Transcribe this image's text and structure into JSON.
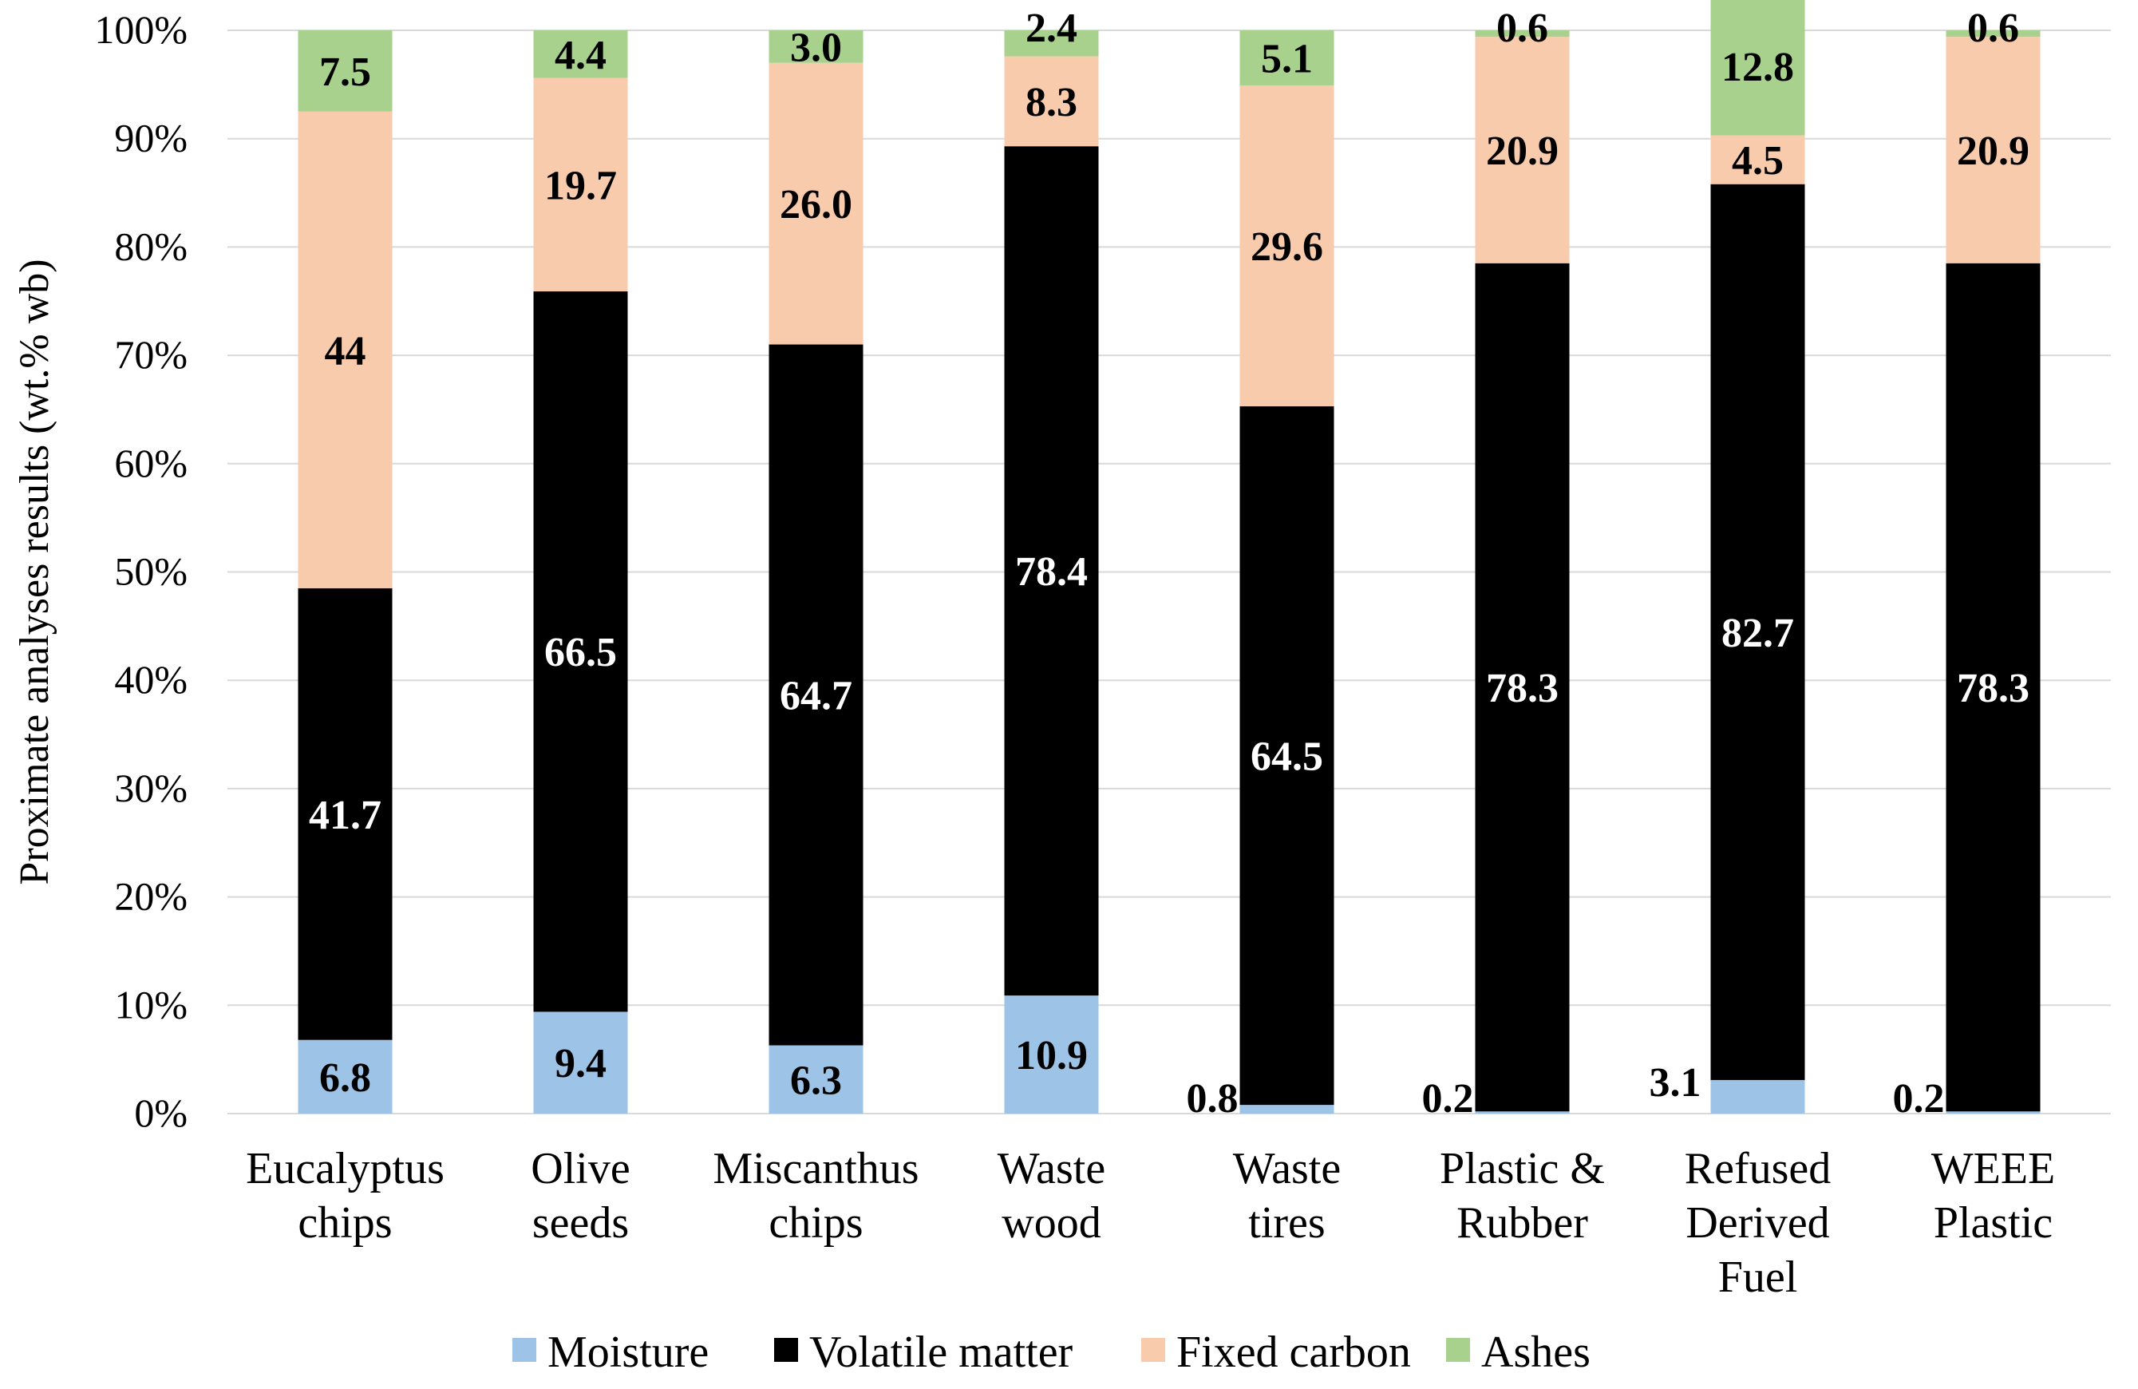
{
  "chart_data": {
    "type": "bar",
    "stacked": true,
    "title": "",
    "xlabel": "",
    "ylabel": "Proximate analyses results (wt.% wb)",
    "ylim": [
      0,
      100
    ],
    "y_tick_labels": [
      "0%",
      "10%",
      "20%",
      "30%",
      "40%",
      "50%",
      "60%",
      "70%",
      "80%",
      "90%",
      "100%"
    ],
    "grid": true,
    "legend_position": "bottom",
    "categories": [
      [
        "Eucalyptus",
        "chips"
      ],
      [
        "Olive",
        "seeds"
      ],
      [
        "Miscanthus",
        "chips"
      ],
      [
        "Waste",
        "wood"
      ],
      [
        "Waste",
        "tires"
      ],
      [
        "Plastic &",
        "Rubber"
      ],
      [
        "Refused",
        "Derived",
        "Fuel"
      ],
      [
        "WEEE",
        "Plastic"
      ]
    ],
    "series": [
      {
        "name": "Moisture",
        "color": "#9dc3e6",
        "label_color": "#000000",
        "values": [
          6.8,
          9.4,
          6.3,
          10.9,
          0.8,
          0.2,
          3.1,
          0.2
        ],
        "labels": [
          "6.8",
          "9.4",
          "6.3",
          "10.9",
          "0.8",
          "0.2",
          "3.1",
          "0.2"
        ]
      },
      {
        "name": "Volatile matter",
        "color": "#000000",
        "label_color": "#ffffff",
        "values": [
          41.7,
          66.5,
          64.7,
          78.4,
          64.5,
          78.3,
          82.7,
          78.3
        ],
        "labels": [
          "41.7",
          "66.5",
          "64.7",
          "78.4",
          "64.5",
          "78.3",
          "82.7",
          "78.3"
        ]
      },
      {
        "name": "Fixed carbon",
        "color": "#f8cbad",
        "label_color": "#000000",
        "values": [
          44,
          19.7,
          26.0,
          8.3,
          29.6,
          20.9,
          4.5,
          20.9
        ],
        "labels": [
          "44",
          "19.7",
          "26.0",
          "8.3",
          "29.6",
          "20.9",
          "4.5",
          "20.9"
        ]
      },
      {
        "name": "Ashes",
        "color": "#a9d18e",
        "label_color": "#000000",
        "values": [
          7.5,
          4.4,
          3.0,
          2.4,
          5.1,
          0.6,
          12.8,
          0.6
        ],
        "labels": [
          "7.5",
          "4.4",
          "3.0",
          "2.4",
          "5.1",
          "0.6",
          "12.8",
          "0.6"
        ]
      }
    ]
  }
}
